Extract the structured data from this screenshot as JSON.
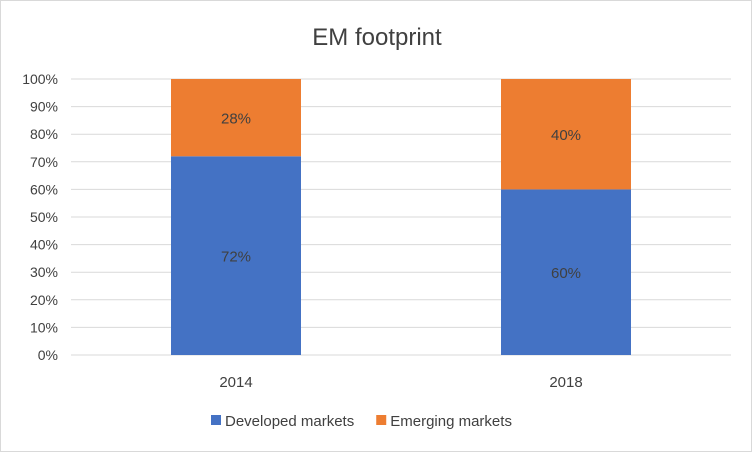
{
  "chart_data": {
    "type": "bar",
    "stacked": true,
    "title": "EM footprint",
    "categories": [
      "2014",
      "2018"
    ],
    "series": [
      {
        "name": "Developed markets",
        "values": [
          72,
          60
        ],
        "labels": [
          "72%",
          "60%"
        ],
        "color": "#4472c4"
      },
      {
        "name": "Emerging markets",
        "values": [
          28,
          40
        ],
        "labels": [
          "28%",
          "40%"
        ],
        "color": "#ed7d31"
      }
    ],
    "ylim": [
      0,
      100
    ],
    "yticks": [
      "0%",
      "10%",
      "20%",
      "30%",
      "40%",
      "50%",
      "60%",
      "70%",
      "80%",
      "90%",
      "100%"
    ],
    "grid": true,
    "legend": "bottom"
  }
}
